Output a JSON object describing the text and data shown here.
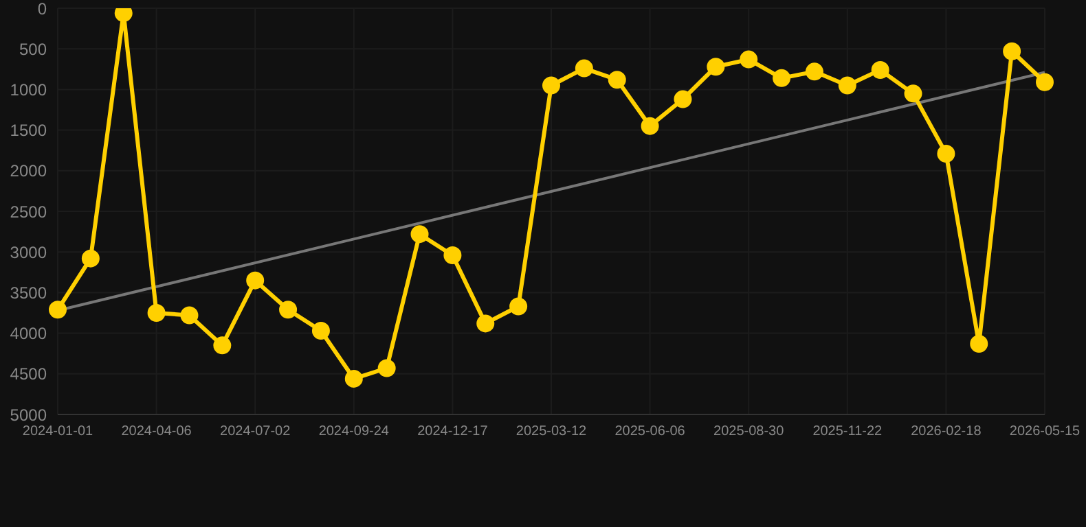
{
  "chart_data": {
    "type": "line",
    "categories": [
      "2024-01-01",
      null,
      null,
      "2024-04-06",
      null,
      null,
      "2024-07-02",
      null,
      null,
      "2024-09-24",
      null,
      null,
      "2024-12-17",
      null,
      null,
      "2025-03-12",
      null,
      null,
      "2025-06-06",
      null,
      null,
      "2025-08-30",
      null,
      null,
      "2025-11-22",
      null,
      null,
      "2026-02-18",
      null,
      null,
      "2026-05-15"
    ],
    "series": [
      {
        "color": "#ffd000",
        "marker": "circle",
        "values": [
          3710,
          3080,
          60,
          3750,
          3780,
          4150,
          3350,
          3710,
          3970,
          4560,
          4430,
          2780,
          3040,
          3880,
          3670,
          950,
          740,
          880,
          1450,
          1120,
          720,
          630,
          860,
          780,
          950,
          760,
          1050,
          1790,
          4130,
          530,
          910
        ]
      },
      {
        "type": "line",
        "color": "#777777",
        "marker": "none",
        "values": [
          3720,
          null,
          null,
          null,
          null,
          null,
          null,
          null,
          null,
          null,
          null,
          null,
          null,
          null,
          null,
          null,
          null,
          null,
          null,
          null,
          null,
          null,
          null,
          null,
          null,
          null,
          null,
          null,
          null,
          null,
          790
        ]
      }
    ],
    "ylim": [
      5000,
      0
    ],
    "yticks": [
      0,
      500,
      1000,
      1500,
      2000,
      2500,
      3000,
      3500,
      4000,
      4500,
      5000
    ],
    "grid": true,
    "legend": false
  }
}
